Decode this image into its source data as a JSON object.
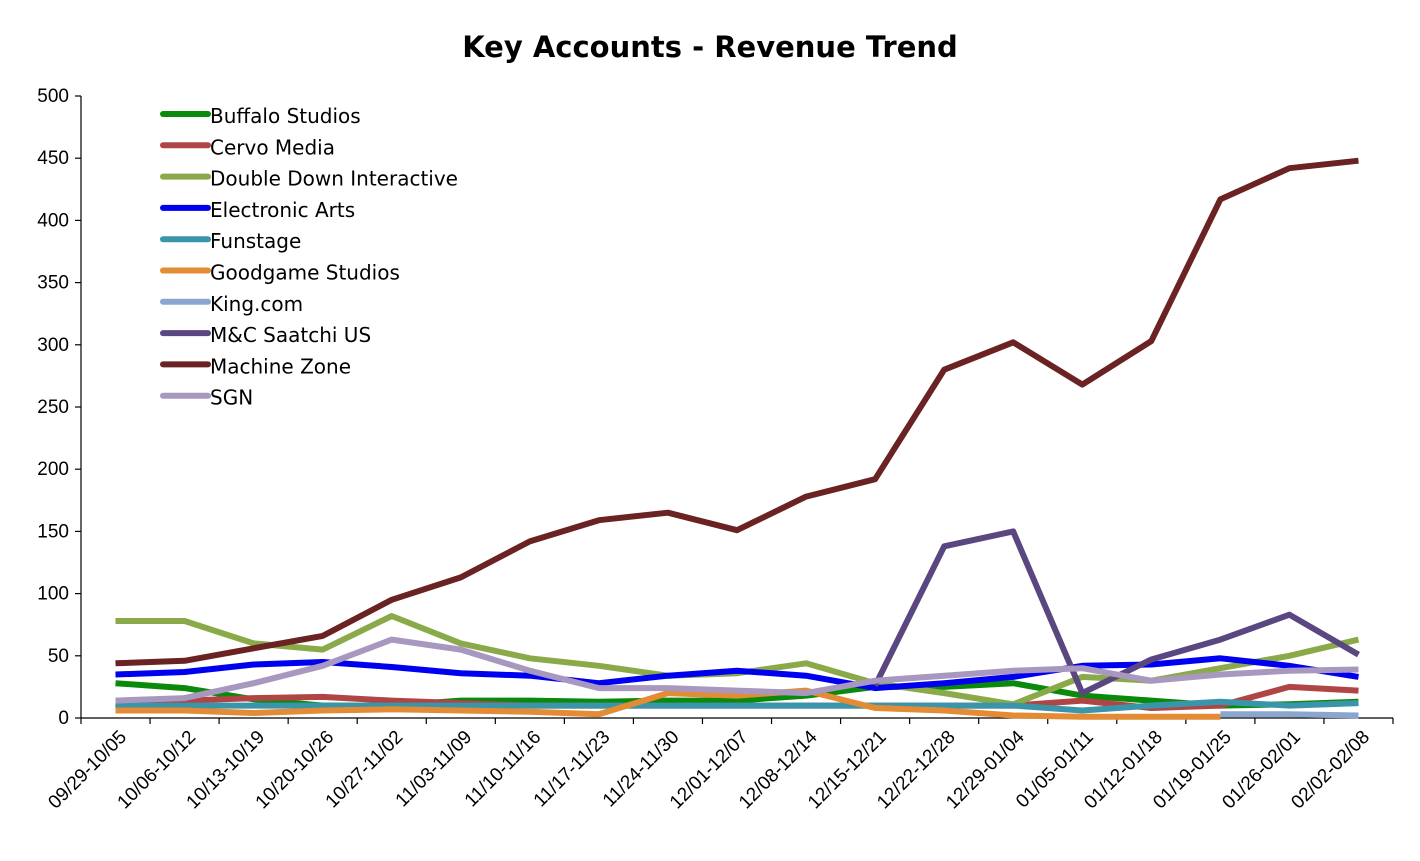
{
  "chart_data": {
    "type": "line",
    "title": "Key Accounts - Revenue Trend",
    "xlabel": "",
    "ylabel": "",
    "ylim": [
      0,
      500
    ],
    "yticks": [
      0,
      50,
      100,
      150,
      200,
      250,
      300,
      350,
      400,
      450,
      500
    ],
    "grid": false,
    "legend_position": "top-left",
    "categories": [
      "09/29-10/05",
      "10/06-10/12",
      "10/13-10/19",
      "10/20-10/26",
      "10/27-11/02",
      "11/03-11/09",
      "11/10-11/16",
      "11/17-11/23",
      "11/24-11/30",
      "12/01-12/07",
      "12/08-12/14",
      "12/15-12/21",
      "12/22-12/28",
      "12/29-01/04",
      "01/05-01/11",
      "01/12-01/18",
      "01/19-01/25",
      "01/26-02/01",
      "02/02-02/08"
    ],
    "series": [
      {
        "name": "Buffalo Studios",
        "color": "#0a8a0a",
        "values": [
          28,
          24,
          15,
          10,
          10,
          14,
          14,
          13,
          14,
          14,
          18,
          25,
          25,
          28,
          18,
          14,
          10,
          11,
          13
        ]
      },
      {
        "name": "Cervo Media",
        "color": "#b04545",
        "values": [
          8,
          14,
          16,
          17,
          14,
          12,
          10,
          10,
          10,
          10,
          10,
          10,
          10,
          10,
          14,
          8,
          10,
          25,
          22
        ]
      },
      {
        "name": "Double Down Interactive",
        "color": "#8aaa4a",
        "values": [
          78,
          78,
          60,
          55,
          82,
          60,
          48,
          42,
          34,
          36,
          44,
          28,
          20,
          11,
          33,
          30,
          40,
          50,
          63
        ]
      },
      {
        "name": "Electronic Arts",
        "color": "#0000f0",
        "values": [
          35,
          37,
          43,
          45,
          41,
          36,
          34,
          28,
          34,
          38,
          34,
          24,
          28,
          33,
          42,
          43,
          48,
          42,
          33
        ]
      },
      {
        "name": "Funstage",
        "color": "#3a95aa",
        "values": [
          10,
          10,
          10,
          10,
          10,
          10,
          10,
          10,
          10,
          10,
          10,
          10,
          10,
          10,
          6,
          10,
          13,
          10,
          12
        ]
      },
      {
        "name": "Goodgame Studios",
        "color": "#e38b35",
        "values": [
          6,
          6,
          4,
          6,
          7,
          6,
          5,
          3,
          20,
          18,
          22,
          8,
          6,
          2,
          1,
          1,
          1,
          null,
          null
        ]
      },
      {
        "name": "King.com",
        "color": "#8aa6cf",
        "values": [
          null,
          null,
          null,
          null,
          null,
          null,
          null,
          null,
          null,
          null,
          null,
          null,
          null,
          null,
          null,
          null,
          3,
          3,
          2
        ]
      },
      {
        "name": "M&C Saatchi US",
        "color": "#5a4680",
        "values": [
          null,
          null,
          null,
          null,
          null,
          null,
          null,
          null,
          null,
          null,
          null,
          26,
          138,
          150,
          20,
          47,
          63,
          83,
          51
        ]
      },
      {
        "name": "Machine Zone",
        "color": "#6b2222",
        "values": [
          44,
          46,
          56,
          66,
          95,
          113,
          142,
          159,
          165,
          151,
          178,
          192,
          280,
          302,
          268,
          303,
          417,
          442,
          448
        ]
      },
      {
        "name": "SGN",
        "color": "#a898c0",
        "values": [
          14,
          16,
          28,
          42,
          63,
          55,
          38,
          24,
          24,
          22,
          20,
          30,
          34,
          38,
          40,
          30,
          35,
          38,
          39
        ]
      }
    ]
  }
}
